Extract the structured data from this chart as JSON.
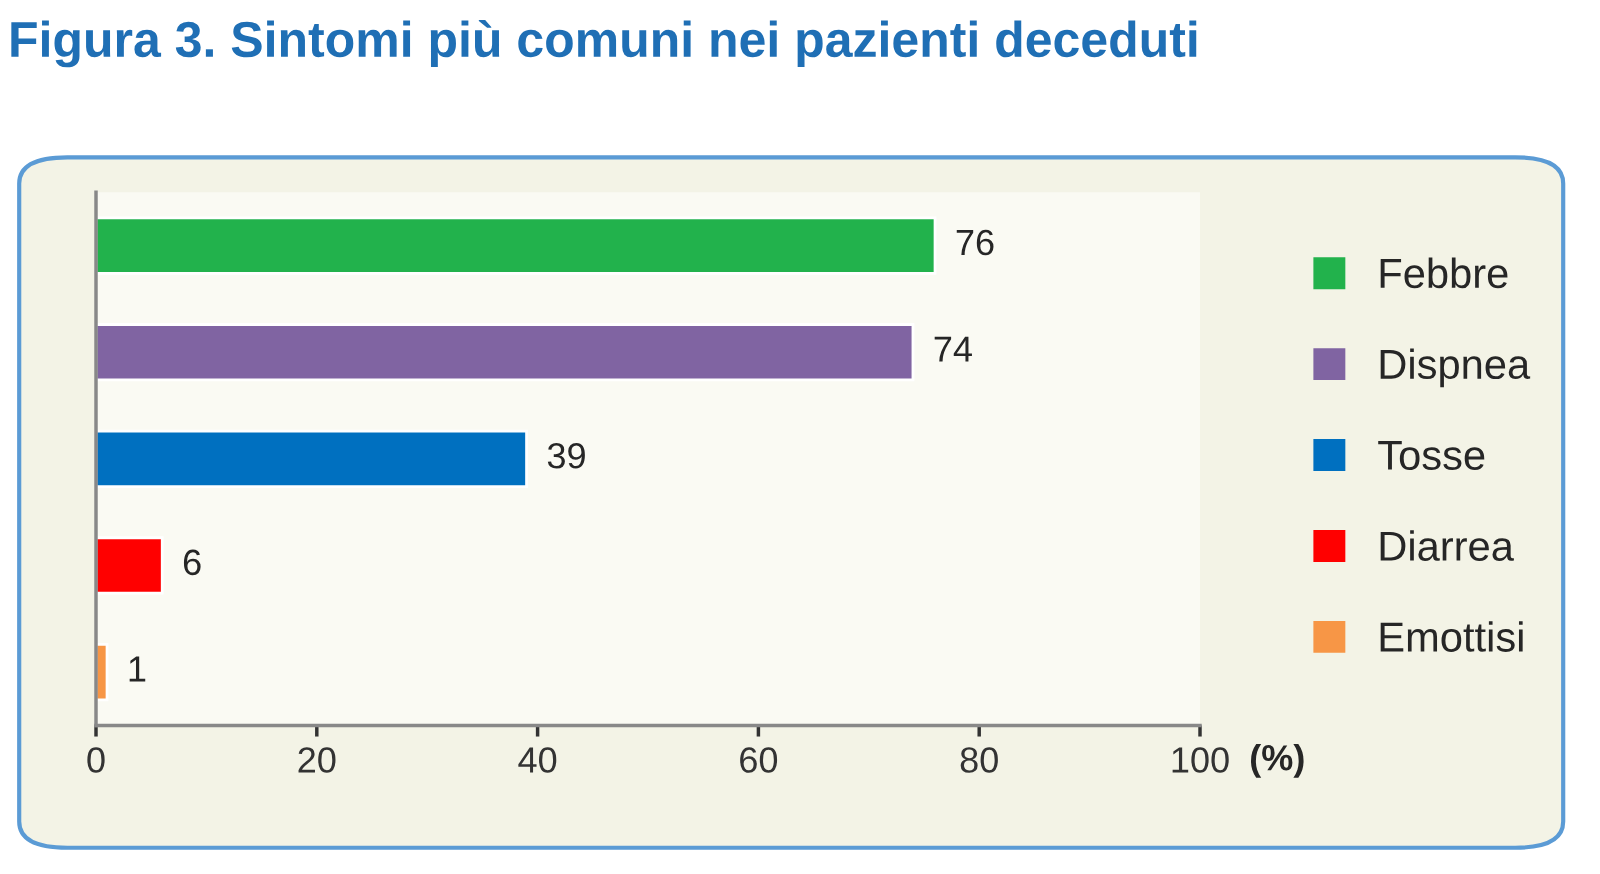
{
  "chart_data": {
    "type": "bar",
    "orientation": "horizontal",
    "title": "Figura 3. Sintomi più comuni nei pazienti deceduti",
    "categories": [
      null,
      null,
      null,
      null,
      null
    ],
    "series": [
      {
        "name": "Febbre",
        "color": "#22b24c",
        "values": [
          76,
          null,
          null,
          null,
          null
        ]
      },
      {
        "name": "Dispnea",
        "color": "#8064a2",
        "values": [
          null,
          74,
          null,
          null,
          null
        ]
      },
      {
        "name": "Tosse",
        "color": "#0070c0",
        "values": [
          null,
          null,
          39,
          null,
          null
        ]
      },
      {
        "name": "Diarrea",
        "color": "#ff0000",
        "values": [
          null,
          null,
          null,
          6,
          null
        ]
      },
      {
        "name": "Emottisi",
        "color": "#f79646",
        "values": [
          null,
          null,
          null,
          null,
          1
        ]
      }
    ],
    "xlabel": "(%)",
    "xlim": [
      0,
      100
    ],
    "xticks": [
      0,
      20,
      40,
      60,
      80,
      100
    ],
    "data_labels": true,
    "legend": "right",
    "grid": false
  }
}
